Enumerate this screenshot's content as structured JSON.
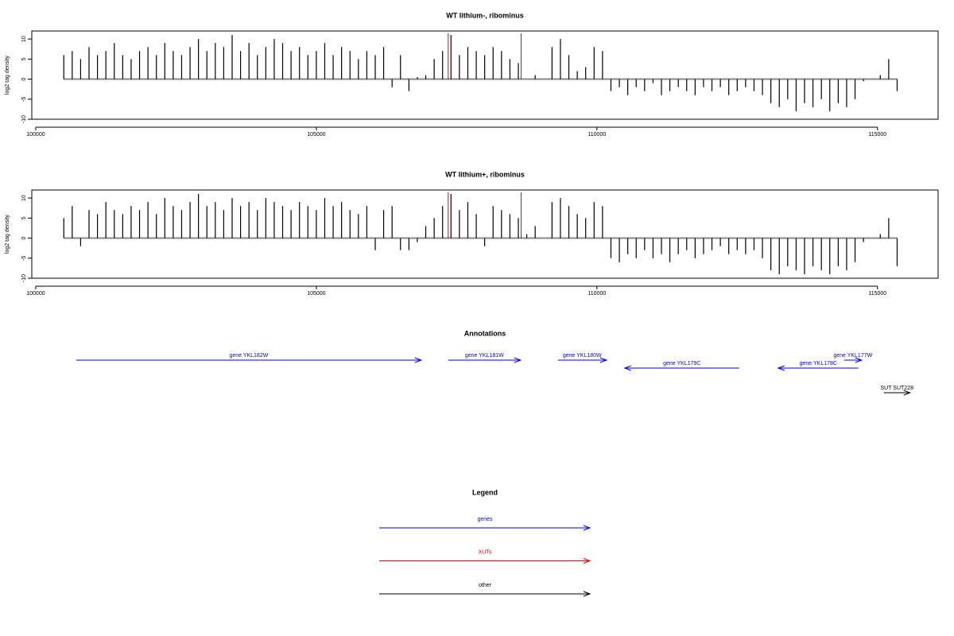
{
  "chart_data": [
    {
      "type": "bar",
      "title": "WT lithium-, ribominus",
      "ylabel": "log2 tag density",
      "color": "#000000",
      "xlim": [
        99930,
        116080
      ],
      "xticks": [
        100000,
        105000,
        110000,
        115000
      ],
      "ylim": [
        -10,
        12
      ],
      "yticks": [
        -10,
        -5,
        0,
        5,
        10
      ],
      "vlines": [
        107350,
        108650
      ],
      "vline_color": "#e00000",
      "x": [
        100500,
        100650,
        100800,
        100950,
        101100,
        101250,
        101400,
        101550,
        101700,
        101850,
        102000,
        102150,
        102300,
        102450,
        102600,
        102750,
        102900,
        103050,
        103200,
        103350,
        103500,
        103650,
        103800,
        103950,
        104100,
        104250,
        104400,
        104550,
        104700,
        104850,
        105000,
        105150,
        105300,
        105450,
        105600,
        105750,
        105900,
        106050,
        106200,
        106350,
        106500,
        106650,
        106800,
        106950,
        107100,
        107250,
        107400,
        107550,
        107700,
        107850,
        108000,
        108150,
        108300,
        108450,
        108600,
        108750,
        108900,
        109050,
        109200,
        109350,
        109500,
        109650,
        109800,
        109950,
        110100,
        110250,
        110400,
        110550,
        110700,
        110850,
        111000,
        111150,
        111300,
        111450,
        111600,
        111750,
        111900,
        112050,
        112200,
        112350,
        112500,
        112650,
        112800,
        112950,
        113100,
        113250,
        113400,
        113550,
        113700,
        113850,
        114000,
        114150,
        114300,
        114450,
        114600,
        114750,
        114900,
        115050,
        115200,
        115350
      ],
      "values": [
        6,
        7,
        5,
        8,
        6,
        7,
        9,
        6,
        5,
        7,
        8,
        6,
        9,
        7,
        6,
        8,
        10,
        7,
        9,
        8,
        11,
        7,
        9,
        6,
        8,
        10,
        9,
        7,
        8,
        6,
        7,
        9,
        6,
        8,
        7,
        5,
        7,
        6,
        8,
        -2,
        6,
        -3,
        0.5,
        1,
        5,
        7,
        11,
        6,
        8,
        7,
        6,
        8,
        7,
        5,
        4,
        0,
        1,
        0,
        8,
        10,
        6,
        2,
        3,
        8,
        7,
        -3,
        -2,
        -4,
        -2,
        -3,
        -1,
        -4,
        -3,
        -2,
        -3,
        -4,
        -2,
        -3,
        -2,
        -4,
        -3,
        -2,
        -3,
        -4,
        -6,
        -7,
        -5,
        -8,
        -6,
        -7,
        -5,
        -8,
        -6,
        -7,
        -5,
        -0.5,
        0,
        1,
        5,
        -3
      ]
    },
    {
      "type": "bar",
      "title": "WT lithium+, ribominus",
      "ylabel": "log2 tag density",
      "color": "#000000",
      "xlim": [
        99930,
        116080
      ],
      "xticks": [
        100000,
        105000,
        110000,
        115000
      ],
      "ylim": [
        -10,
        12
      ],
      "yticks": [
        -10,
        -5,
        0,
        5,
        10
      ],
      "vlines": [
        107350,
        108650
      ],
      "vline_color": "#e00000",
      "x": [
        100500,
        100650,
        100800,
        100950,
        101100,
        101250,
        101400,
        101550,
        101700,
        101850,
        102000,
        102150,
        102300,
        102450,
        102600,
        102750,
        102900,
        103050,
        103200,
        103350,
        103500,
        103650,
        103800,
        103950,
        104100,
        104250,
        104400,
        104550,
        104700,
        104850,
        105000,
        105150,
        105300,
        105450,
        105600,
        105750,
        105900,
        106050,
        106200,
        106350,
        106500,
        106650,
        106800,
        106950,
        107100,
        107250,
        107400,
        107550,
        107700,
        107850,
        108000,
        108150,
        108300,
        108450,
        108600,
        108750,
        108900,
        109050,
        109200,
        109350,
        109500,
        109650,
        109800,
        109950,
        110100,
        110250,
        110400,
        110550,
        110700,
        110850,
        111000,
        111150,
        111300,
        111450,
        111600,
        111750,
        111900,
        112050,
        112200,
        112350,
        112500,
        112650,
        112800,
        112950,
        113100,
        113250,
        113400,
        113550,
        113700,
        113850,
        114000,
        114150,
        114300,
        114450,
        114600,
        114750,
        114900,
        115050,
        115200,
        115350
      ],
      "values": [
        5,
        8,
        -2,
        7,
        6,
        9,
        7,
        6,
        8,
        7,
        9,
        6,
        10,
        8,
        7,
        9,
        11,
        8,
        9,
        7,
        10,
        8,
        9,
        7,
        10,
        9,
        8,
        7,
        9,
        8,
        7,
        10,
        8,
        9,
        7,
        6,
        8,
        -3,
        7,
        8,
        -3,
        -3,
        -1,
        3,
        5,
        8,
        11,
        7,
        9,
        6,
        -2,
        8,
        7,
        6,
        5,
        1,
        3,
        0,
        9,
        10,
        8,
        6,
        5,
        9,
        8,
        -5,
        -6,
        -4,
        -5,
        -3,
        -5,
        -4,
        -6,
        -4,
        -3,
        -5,
        -4,
        -3,
        -2,
        -4,
        -3,
        -4,
        -3,
        -5,
        -8,
        -9,
        -7,
        -8,
        -9,
        -7,
        -8,
        -9,
        -7,
        -8,
        -6,
        -1,
        0,
        1,
        5,
        -7
      ]
    }
  ],
  "annotations": {
    "title": "Annotations",
    "items": [
      {
        "label": "gene YKL182W",
        "type": "gene",
        "start": 100722,
        "end": 106870
      },
      {
        "label": "gene YKL181W",
        "type": "gene",
        "start": 107351,
        "end": 108640
      },
      {
        "label": "gene YKL180W",
        "type": "gene",
        "start": 109306,
        "end": 110170
      },
      {
        "label": "gene YKL179C",
        "type": "gene",
        "start": 112535,
        "end": 110496
      },
      {
        "label": "gene YKL178C",
        "type": "gene",
        "start": 114660,
        "end": 113230
      },
      {
        "label": "gene YKL177W",
        "type": "gene",
        "start": 114405,
        "end": 114717
      },
      {
        "label": "SUT SUT228",
        "type": "other",
        "start": 115113,
        "end": 115580
      }
    ]
  },
  "legend": {
    "title": "Legend",
    "items": [
      {
        "name": "genes",
        "key": "gene",
        "color": "#0000ee"
      },
      {
        "name": "XUTs",
        "key": "xut",
        "color": "#e00000"
      },
      {
        "name": "other",
        "key": "other",
        "color": "#000000"
      }
    ]
  }
}
